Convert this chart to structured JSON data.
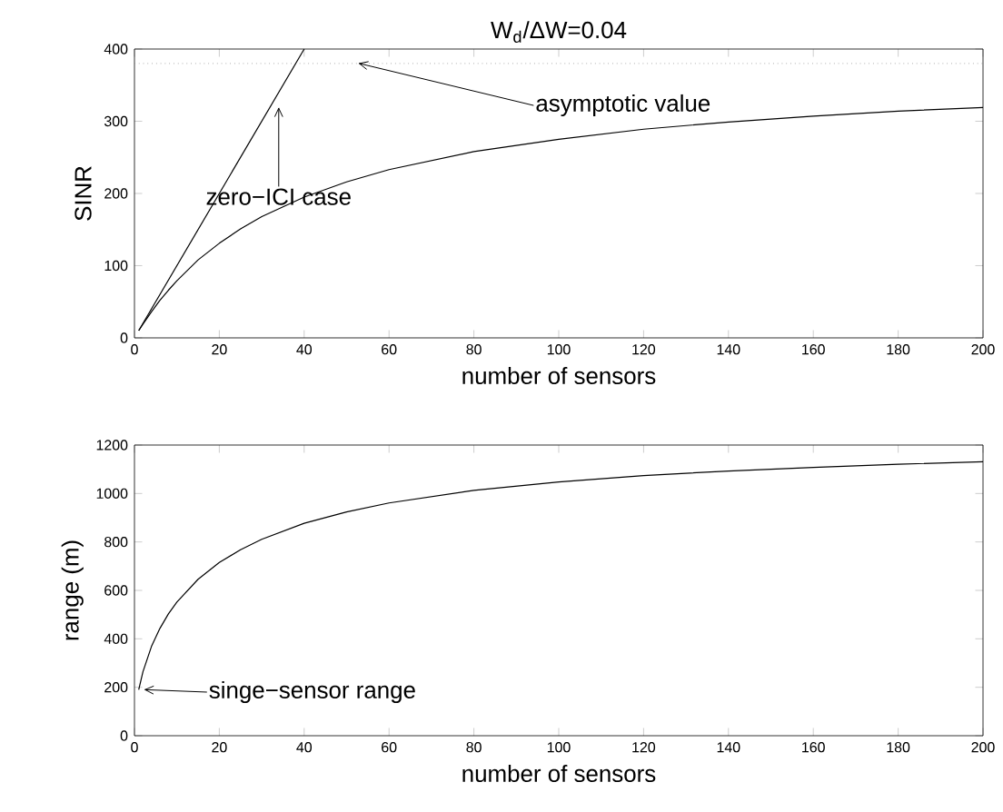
{
  "chart_data": [
    {
      "type": "line",
      "title": "W$_{d}$/ΔW=0.04",
      "xlabel": "number of sensors",
      "ylabel": "SINR",
      "xlim": [
        0,
        200
      ],
      "ylim": [
        0,
        400
      ],
      "xticks": [
        0,
        20,
        40,
        60,
        80,
        100,
        120,
        140,
        160,
        180,
        200
      ],
      "yticks": [
        0,
        100,
        200,
        300,
        400
      ],
      "series": [
        {
          "color": "#000000",
          "x": [
            1,
            2,
            4,
            6,
            8,
            10,
            15,
            20,
            25,
            30,
            40,
            50,
            60,
            80,
            100,
            120,
            140,
            160,
            180,
            200
          ],
          "values": [
            10,
            19,
            36,
            52,
            66,
            79,
            108,
            131,
            151,
            168,
            195,
            216,
            233,
            258,
            275,
            289,
            299,
            307,
            314,
            319
          ]
        },
        {
          "color": "#000000",
          "x": [
            1,
            40
          ],
          "values": [
            10,
            400
          ]
        }
      ],
      "ref_lines": [
        {
          "axis": "y",
          "value": 380,
          "color": "#808080",
          "line_style": "dotted"
        }
      ],
      "annotations": [
        {
          "text": "asymptotic value",
          "x": 53,
          "y": 380
        },
        {
          "text": "zero−ICI case",
          "x": 34,
          "y": 318
        }
      ],
      "line_style": "solid",
      "marker": "none",
      "grid": false
    },
    {
      "type": "line",
      "xlabel": "number of sensors",
      "ylabel": "range (m)",
      "xlim": [
        0,
        200
      ],
      "ylim": [
        0,
        1200
      ],
      "xticks": [
        0,
        20,
        40,
        60,
        80,
        100,
        120,
        140,
        160,
        180,
        200
      ],
      "yticks": [
        0,
        200,
        400,
        600,
        800,
        1000,
        1200
      ],
      "series": [
        {
          "color": "#000000",
          "x": [
            1,
            2,
            4,
            6,
            8,
            10,
            15,
            20,
            25,
            30,
            40,
            50,
            60,
            80,
            100,
            120,
            140,
            160,
            180,
            200
          ],
          "values": [
            190,
            264,
            368,
            443,
            503,
            552,
            646,
            715,
            768,
            811,
            877,
            924,
            961,
            1013,
            1048,
            1074,
            1093,
            1108,
            1121,
            1131
          ]
        }
      ],
      "annotations": [
        {
          "text": "singe−sensor range",
          "x": 2.5,
          "y": 190
        }
      ],
      "line_style": "solid",
      "marker": "none",
      "grid": false
    }
  ]
}
